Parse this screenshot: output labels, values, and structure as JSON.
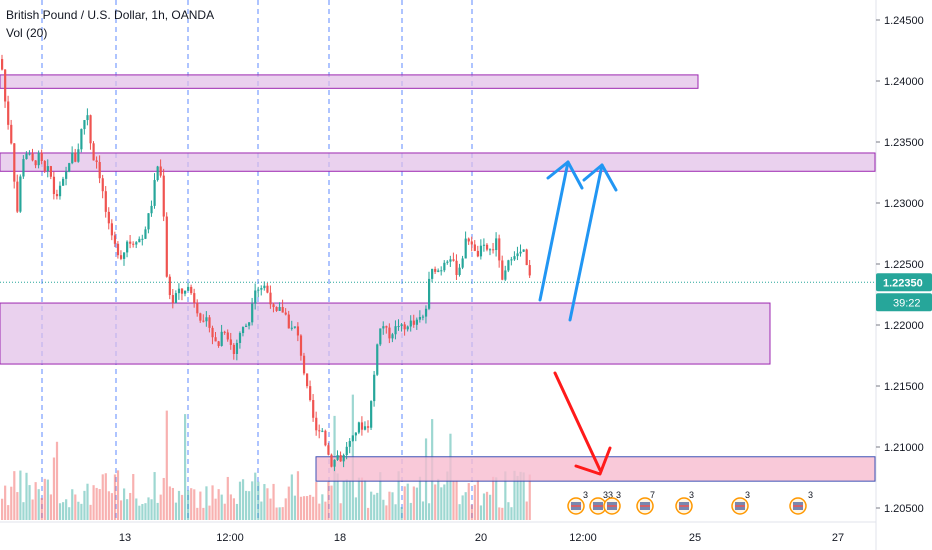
{
  "legend": {
    "symbol": "British Pound / U.S. Dollar, 1h, OANDA",
    "volume": "Vol (20)"
  },
  "colors": {
    "up": "#26a69a",
    "down": "#ef5350",
    "zone_fill": "#e1bee7",
    "zone_stroke": "#9c27b0",
    "target_fill": "#f8bbd0",
    "target_stroke": "#3f51b5",
    "arrow_up": "#2196f3",
    "arrow_down": "#ff1a1a",
    "last_price": "#26a69a",
    "session_line": "#2962ff"
  },
  "price_axis": {
    "ticks": [
      "1.24500",
      "1.24000",
      "1.23500",
      "1.23000",
      "1.22500",
      "1.22000",
      "1.21500",
      "1.21000",
      "1.20500"
    ],
    "last_price": "1.22350",
    "countdown": "39:22"
  },
  "time_axis": {
    "ticks": [
      "13",
      "12:00",
      "18",
      "20",
      "12:00",
      "25",
      "27"
    ]
  },
  "event_badges": [
    {
      "count": "3"
    },
    {
      "count": "33"
    },
    {
      "count": "3"
    },
    {
      "count": "7"
    },
    {
      "count": "3"
    },
    {
      "count": "3"
    },
    {
      "count": "3"
    }
  ],
  "chart_data": {
    "type": "candlestick",
    "title": "British Pound / U.S. Dollar, 1h, OANDA",
    "indicator": "Vol (20)",
    "ylim": [
      1.2045,
      1.2475
    ],
    "last_price": 1.2235,
    "zones": [
      {
        "from": 1.2394,
        "to": 1.2405
      },
      {
        "from": 1.2326,
        "to": 1.2341
      },
      {
        "from": 1.2168,
        "to": 1.2218
      },
      {
        "from": 1.2072,
        "to": 1.2092
      }
    ],
    "close_path": [
      [
        0,
        1.2418
      ],
      [
        5,
        1.2375
      ],
      [
        10,
        1.2352
      ],
      [
        16,
        1.2291
      ],
      [
        21,
        1.2336
      ],
      [
        26,
        1.2342
      ],
      [
        33,
        1.2331
      ],
      [
        38,
        1.2339
      ],
      [
        44,
        1.2324
      ],
      [
        48,
        1.2329
      ],
      [
        54,
        1.2303
      ],
      [
        59,
        1.2312
      ],
      [
        64,
        1.2321
      ],
      [
        70,
        1.2341
      ],
      [
        75,
        1.2334
      ],
      [
        80,
        1.2359
      ],
      [
        86,
        1.2376
      ],
      [
        91,
        1.2338
      ],
      [
        96,
        1.2334
      ],
      [
        101,
        1.2312
      ],
      [
        106,
        1.2286
      ],
      [
        111,
        1.227
      ],
      [
        116,
        1.2261
      ],
      [
        121,
        1.2255
      ],
      [
        126,
        1.2269
      ],
      [
        131,
        1.2267
      ],
      [
        136,
        1.2271
      ],
      [
        141,
        1.227
      ],
      [
        146,
        1.2285
      ],
      [
        151,
        1.2301
      ],
      [
        156,
        1.2332
      ],
      [
        161,
        1.2318
      ],
      [
        166,
        1.2236
      ],
      [
        171,
        1.2217
      ],
      [
        176,
        1.2228
      ],
      [
        181,
        1.2226
      ],
      [
        186,
        1.2232
      ],
      [
        191,
        1.2225
      ],
      [
        196,
        1.2213
      ],
      [
        202,
        1.22
      ],
      [
        207,
        1.2205
      ],
      [
        212,
        1.2189
      ],
      [
        217,
        1.2182
      ],
      [
        222,
        1.2199
      ],
      [
        227,
        1.219
      ],
      [
        233,
        1.2176
      ],
      [
        238,
        1.2193
      ],
      [
        243,
        1.2198
      ],
      [
        248,
        1.2203
      ],
      [
        253,
        1.2231
      ],
      [
        258,
        1.223
      ],
      [
        264,
        1.2232
      ],
      [
        269,
        1.2221
      ],
      [
        274,
        1.2208
      ],
      [
        279,
        1.2213
      ],
      [
        284,
        1.221
      ],
      [
        289,
        1.2196
      ],
      [
        295,
        1.2198
      ],
      [
        300,
        1.2176
      ],
      [
        305,
        1.2151
      ],
      [
        310,
        1.2132
      ],
      [
        315,
        1.2112
      ],
      [
        320,
        1.2118
      ],
      [
        326,
        1.2097
      ],
      [
        331,
        1.2085
      ],
      [
        336,
        1.2094
      ],
      [
        341,
        1.2088
      ],
      [
        346,
        1.2102
      ],
      [
        351,
        1.2105
      ],
      [
        357,
        1.2118
      ],
      [
        362,
        1.2116
      ],
      [
        367,
        1.2118
      ],
      [
        372,
        1.2149
      ],
      [
        377,
        1.2194
      ],
      [
        382,
        1.22
      ],
      [
        388,
        1.2191
      ],
      [
        393,
        1.2196
      ],
      [
        398,
        1.2201
      ],
      [
        403,
        1.2195
      ],
      [
        408,
        1.2203
      ],
      [
        413,
        1.22
      ],
      [
        419,
        1.2205
      ],
      [
        424,
        1.2207
      ],
      [
        429,
        1.2243
      ],
      [
        434,
        1.2246
      ],
      [
        439,
        1.2244
      ],
      [
        444,
        1.2254
      ],
      [
        450,
        1.2256
      ],
      [
        455,
        1.2243
      ],
      [
        460,
        1.225
      ],
      [
        465,
        1.227
      ],
      [
        470,
        1.227
      ],
      [
        475,
        1.2255
      ],
      [
        481,
        1.2264
      ],
      [
        486,
        1.2262
      ],
      [
        491,
        1.2261
      ],
      [
        496,
        1.227
      ],
      [
        501,
        1.2234
      ],
      [
        506,
        1.2248
      ],
      [
        512,
        1.226
      ],
      [
        517,
        1.2257
      ],
      [
        522,
        1.2262
      ],
      [
        527,
        1.2242
      ],
      [
        531,
        1.2235
      ]
    ]
  }
}
